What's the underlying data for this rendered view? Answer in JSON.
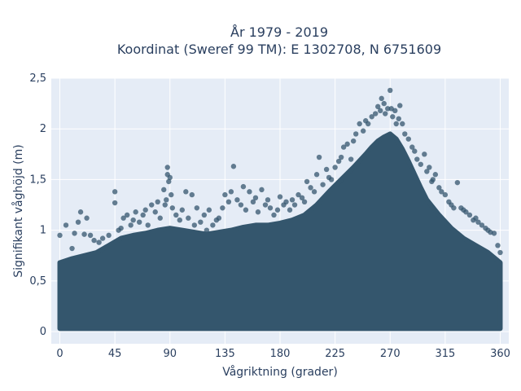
{
  "chart_data": {
    "type": "scatter",
    "title": "År 1979 - 2019",
    "subtitle": "Koordinat (Sweref 99 TM): E 1302708, N 6751609",
    "xlabel": "Vågriktning (grader)",
    "ylabel": "Signifikant våghöjd (m)",
    "xlim": [
      -7,
      367
    ],
    "ylim": [
      -0.12,
      2.5
    ],
    "x_ticks": [
      0,
      45,
      90,
      135,
      180,
      225,
      270,
      315,
      360
    ],
    "x_tick_labels": [
      "0",
      "45",
      "90",
      "135",
      "180",
      "225",
      "270",
      "315",
      "360"
    ],
    "y_ticks": [
      0,
      0.5,
      1,
      1.5,
      2,
      2.5
    ],
    "y_tick_labels": [
      "0",
      "0,5",
      "1",
      "1,5",
      "2",
      "2,5"
    ],
    "grid": true,
    "marker_color": "#34566d",
    "background_color": "#e5ecf6",
    "points": [
      [
        0,
        0.95
      ],
      [
        5,
        1.05
      ],
      [
        10,
        0.82
      ],
      [
        12,
        0.97
      ],
      [
        15,
        1.08
      ],
      [
        17,
        1.18
      ],
      [
        20,
        0.96
      ],
      [
        22,
        1.12
      ],
      [
        25,
        0.95
      ],
      [
        28,
        0.9
      ],
      [
        32,
        0.88
      ],
      [
        35,
        0.92
      ],
      [
        40,
        0.95
      ],
      [
        45,
        1.38
      ],
      [
        45,
        1.27
      ],
      [
        48,
        1.0
      ],
      [
        50,
        1.02
      ],
      [
        52,
        1.12
      ],
      [
        55,
        1.15
      ],
      [
        58,
        1.05
      ],
      [
        60,
        1.1
      ],
      [
        62,
        1.18
      ],
      [
        65,
        1.08
      ],
      [
        68,
        1.15
      ],
      [
        70,
        1.2
      ],
      [
        72,
        1.05
      ],
      [
        75,
        1.25
      ],
      [
        78,
        1.18
      ],
      [
        80,
        1.28
      ],
      [
        82,
        1.12
      ],
      [
        85,
        1.4
      ],
      [
        86,
        1.25
      ],
      [
        87,
        1.3
      ],
      [
        88,
        1.62
      ],
      [
        88,
        1.55
      ],
      [
        89,
        1.48
      ],
      [
        90,
        1.52
      ],
      [
        91,
        1.35
      ],
      [
        92,
        1.22
      ],
      [
        95,
        1.15
      ],
      [
        98,
        1.1
      ],
      [
        100,
        1.2
      ],
      [
        103,
        1.38
      ],
      [
        105,
        1.12
      ],
      [
        108,
        1.35
      ],
      [
        110,
        1.05
      ],
      [
        112,
        1.22
      ],
      [
        115,
        1.08
      ],
      [
        118,
        1.15
      ],
      [
        120,
        1.0
      ],
      [
        122,
        1.2
      ],
      [
        125,
        1.05
      ],
      [
        128,
        1.1
      ],
      [
        130,
        1.12
      ],
      [
        133,
        1.22
      ],
      [
        135,
        1.35
      ],
      [
        138,
        1.28
      ],
      [
        140,
        1.38
      ],
      [
        142,
        1.63
      ],
      [
        145,
        1.3
      ],
      [
        148,
        1.25
      ],
      [
        150,
        1.43
      ],
      [
        152,
        1.2
      ],
      [
        155,
        1.38
      ],
      [
        158,
        1.28
      ],
      [
        160,
        1.32
      ],
      [
        162,
        1.18
      ],
      [
        165,
        1.4
      ],
      [
        168,
        1.25
      ],
      [
        170,
        1.3
      ],
      [
        172,
        1.22
      ],
      [
        175,
        1.15
      ],
      [
        178,
        1.2
      ],
      [
        180,
        1.33
      ],
      [
        183,
        1.25
      ],
      [
        185,
        1.28
      ],
      [
        188,
        1.2
      ],
      [
        190,
        1.3
      ],
      [
        192,
        1.25
      ],
      [
        195,
        1.35
      ],
      [
        198,
        1.32
      ],
      [
        200,
        1.28
      ],
      [
        202,
        1.48
      ],
      [
        205,
        1.42
      ],
      [
        208,
        1.38
      ],
      [
        210,
        1.55
      ],
      [
        212,
        1.72
      ],
      [
        215,
        1.45
      ],
      [
        218,
        1.6
      ],
      [
        220,
        1.52
      ],
      [
        222,
        1.5
      ],
      [
        225,
        1.62
      ],
      [
        228,
        1.68
      ],
      [
        230,
        1.72
      ],
      [
        232,
        1.82
      ],
      [
        235,
        1.85
      ],
      [
        238,
        1.7
      ],
      [
        240,
        1.88
      ],
      [
        242,
        1.95
      ],
      [
        245,
        2.05
      ],
      [
        248,
        1.98
      ],
      [
        250,
        2.08
      ],
      [
        252,
        2.05
      ],
      [
        255,
        2.12
      ],
      [
        258,
        2.15
      ],
      [
        260,
        2.22
      ],
      [
        262,
        2.18
      ],
      [
        263,
        2.3
      ],
      [
        265,
        2.25
      ],
      [
        266,
        2.15
      ],
      [
        268,
        2.2
      ],
      [
        270,
        2.38
      ],
      [
        271,
        2.2
      ],
      [
        272,
        2.12
      ],
      [
        274,
        2.18
      ],
      [
        275,
        2.05
      ],
      [
        277,
        2.1
      ],
      [
        278,
        2.23
      ],
      [
        280,
        2.05
      ],
      [
        282,
        1.95
      ],
      [
        285,
        1.9
      ],
      [
        288,
        1.82
      ],
      [
        290,
        1.78
      ],
      [
        292,
        1.7
      ],
      [
        295,
        1.65
      ],
      [
        298,
        1.75
      ],
      [
        300,
        1.58
      ],
      [
        302,
        1.62
      ],
      [
        304,
        1.48
      ],
      [
        305,
        1.5
      ],
      [
        307,
        1.55
      ],
      [
        310,
        1.42
      ],
      [
        312,
        1.38
      ],
      [
        315,
        1.35
      ],
      [
        318,
        1.28
      ],
      [
        320,
        1.25
      ],
      [
        322,
        1.22
      ],
      [
        325,
        1.47
      ],
      [
        328,
        1.22
      ],
      [
        330,
        1.2
      ],
      [
        332,
        1.18
      ],
      [
        335,
        1.15
      ],
      [
        338,
        1.1
      ],
      [
        340,
        1.12
      ],
      [
        342,
        1.08
      ],
      [
        345,
        1.05
      ],
      [
        348,
        1.02
      ],
      [
        350,
        1.0
      ],
      [
        352,
        0.98
      ],
      [
        355,
        0.97
      ],
      [
        358,
        0.85
      ],
      [
        360,
        0.78
      ]
    ],
    "bulk_max": [
      [
        0,
        0.68
      ],
      [
        10,
        0.72
      ],
      [
        20,
        0.75
      ],
      [
        30,
        0.78
      ],
      [
        40,
        0.85
      ],
      [
        50,
        0.92
      ],
      [
        60,
        0.95
      ],
      [
        70,
        0.97
      ],
      [
        80,
        1.0
      ],
      [
        90,
        1.02
      ],
      [
        100,
        1.0
      ],
      [
        110,
        0.98
      ],
      [
        120,
        0.96
      ],
      [
        130,
        0.98
      ],
      [
        140,
        1.0
      ],
      [
        150,
        1.03
      ],
      [
        160,
        1.05
      ],
      [
        170,
        1.05
      ],
      [
        180,
        1.07
      ],
      [
        190,
        1.1
      ],
      [
        200,
        1.15
      ],
      [
        210,
        1.25
      ],
      [
        220,
        1.38
      ],
      [
        230,
        1.5
      ],
      [
        240,
        1.62
      ],
      [
        250,
        1.75
      ],
      [
        255,
        1.82
      ],
      [
        260,
        1.88
      ],
      [
        265,
        1.92
      ],
      [
        270,
        1.95
      ],
      [
        275,
        1.9
      ],
      [
        280,
        1.8
      ],
      [
        285,
        1.68
      ],
      [
        290,
        1.55
      ],
      [
        295,
        1.42
      ],
      [
        300,
        1.3
      ],
      [
        310,
        1.15
      ],
      [
        320,
        1.02
      ],
      [
        330,
        0.92
      ],
      [
        340,
        0.85
      ],
      [
        350,
        0.78
      ],
      [
        360,
        0.68
      ]
    ]
  }
}
